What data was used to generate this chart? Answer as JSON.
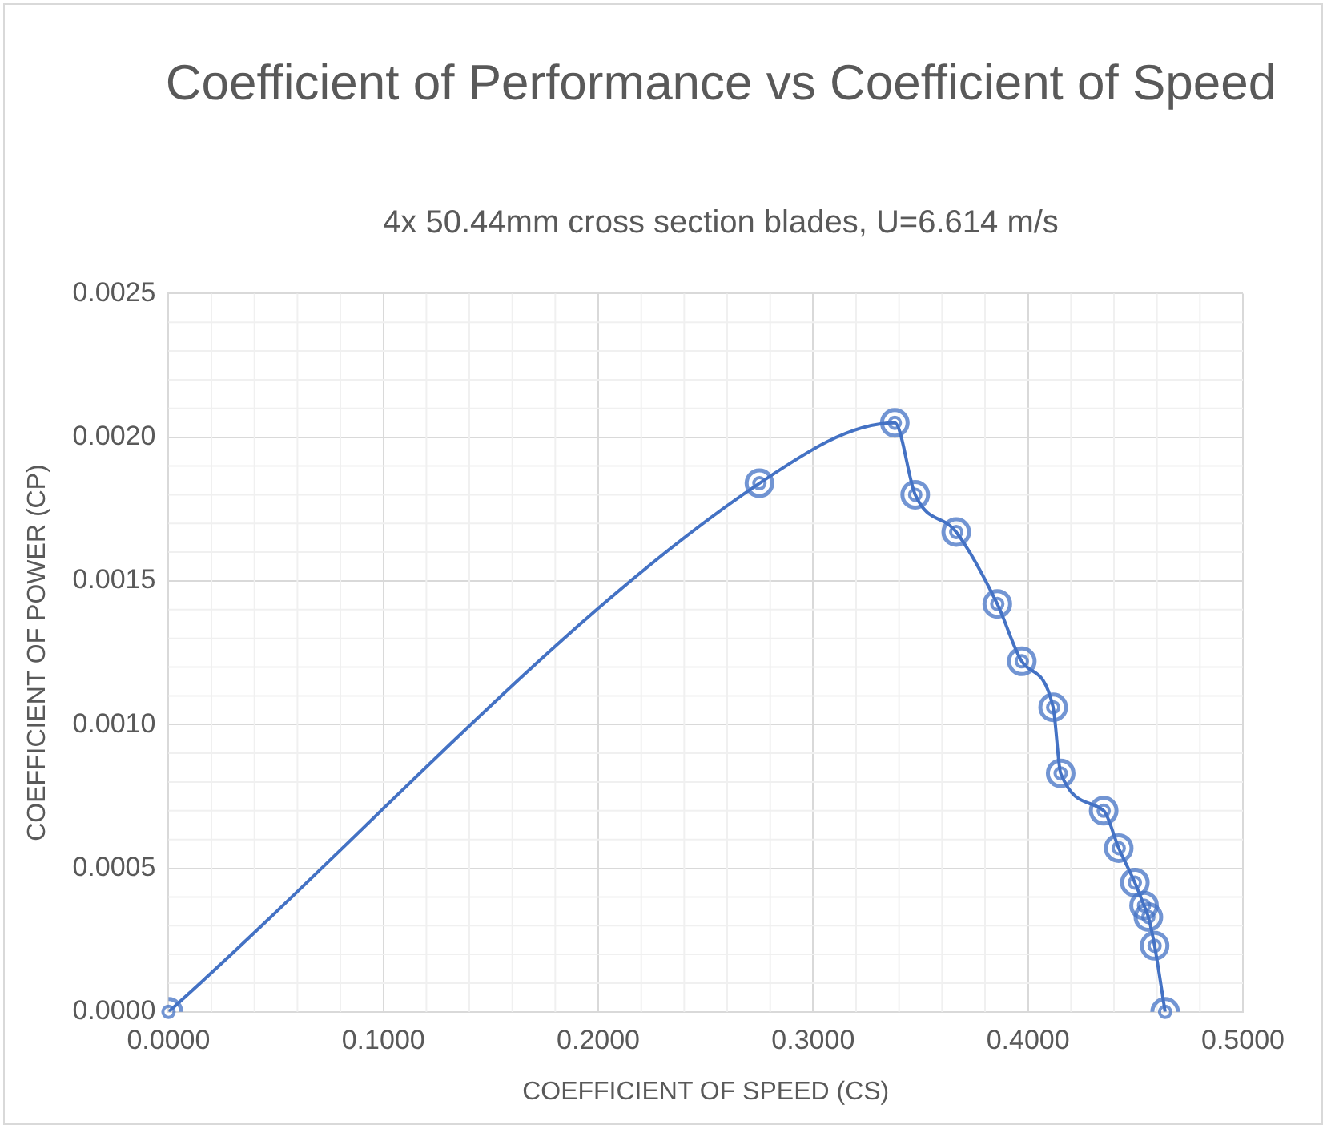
{
  "chart_data": {
    "type": "line",
    "title": "Coefficient of Performance vs Coefficient of Speed",
    "subtitle": "4x 50.44mm cross section blades, U=6.614 m/s",
    "xlabel": "COEFFICIENT OF SPEED (CS)",
    "ylabel": "COEFFICIENT OF POWER (CP)",
    "x": [
      0,
      0.275,
      0.338,
      0.3475,
      0.3666,
      0.3857,
      0.3971,
      0.4117,
      0.4152,
      0.4352,
      0.4422,
      0.4497,
      0.454,
      0.456,
      0.4589,
      0.4638
    ],
    "values": [
      0,
      0.00184,
      0.00205,
      0.0018,
      0.00167,
      0.00142,
      0.00122,
      0.00106,
      0.00083,
      0.0007,
      0.00057,
      0.00045,
      0.00037,
      0.00033,
      0.00023,
      0
    ],
    "color": "#4472c4",
    "marker": "circle",
    "line_style": "solid",
    "grid": true,
    "legend": false,
    "xlim": [
      0,
      0.5
    ],
    "xticks": [
      {
        "value": 0,
        "label": "0.0000"
      },
      {
        "value": 0.1,
        "label": "0.1000"
      },
      {
        "value": 0.2,
        "label": "0.2000"
      },
      {
        "value": 0.3,
        "label": "0.3000"
      },
      {
        "value": 0.4,
        "label": "0.4000"
      },
      {
        "value": 0.5,
        "label": "0.5000"
      }
    ],
    "ylim": [
      0,
      0.0025
    ],
    "yticks": [
      {
        "value": 0,
        "label": "0.0000"
      },
      {
        "value": 0.0005,
        "label": "0.0005"
      },
      {
        "value": 0.001,
        "label": "0.0010"
      },
      {
        "value": 0.0015,
        "label": "0.0015"
      },
      {
        "value": 0.002,
        "label": "0.0020"
      },
      {
        "value": 0.0025,
        "label": "0.0025"
      }
    ]
  }
}
